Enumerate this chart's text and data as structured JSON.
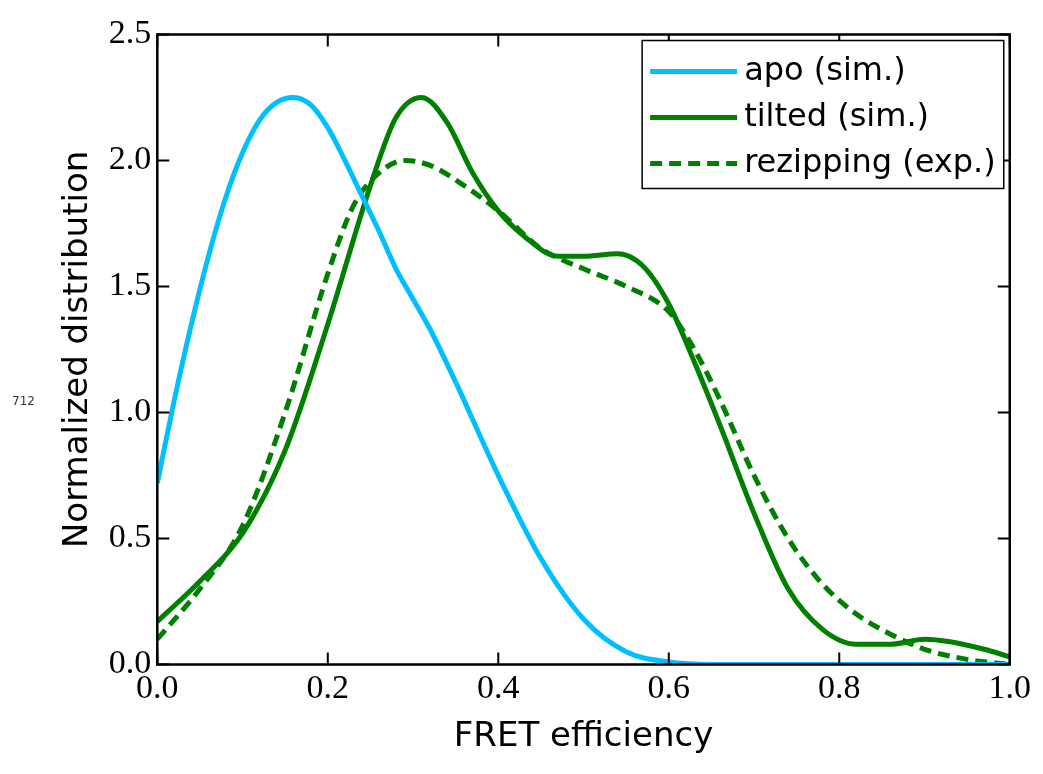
{
  "chart_data": {
    "type": "line",
    "xlabel": "FRET efficiency",
    "ylabel": "Normalized distribution",
    "xlim": [
      0,
      1
    ],
    "ylim": [
      0,
      2.5
    ],
    "xticks": [
      {
        "value": 0,
        "label": "0.0"
      },
      {
        "value": 0.2,
        "label": "0.2"
      },
      {
        "value": 0.4,
        "label": "0.4"
      },
      {
        "value": 0.6,
        "label": "0.6"
      },
      {
        "value": 0.8,
        "label": "0.8"
      },
      {
        "value": 1,
        "label": "1.0"
      }
    ],
    "yticks": [
      {
        "value": 0,
        "label": "0.0"
      },
      {
        "value": 0.5,
        "label": "0.5"
      },
      {
        "value": 1,
        "label": "1.0"
      },
      {
        "value": 1.5,
        "label": "1.5"
      },
      {
        "value": 2,
        "label": "2.0"
      },
      {
        "value": 2.5,
        "label": "2.5"
      }
    ],
    "grid": false,
    "legend": "top right",
    "marker": "none",
    "annotations": [
      "712"
    ],
    "series": [
      {
        "name": "apo (sim.)",
        "color": "#00bfff",
        "line_style": "solid",
        "x": [
          0,
          0.02,
          0.04,
          0.06,
          0.08,
          0.1,
          0.12,
          0.14,
          0.16,
          0.18,
          0.2,
          0.22,
          0.24,
          0.26,
          0.28,
          0.3,
          0.32,
          0.35,
          0.4,
          0.45,
          0.5,
          0.55,
          0.6,
          0.65,
          0.8,
          1
        ],
        "values": [
          0.72,
          1.05,
          1.35,
          1.62,
          1.85,
          2.03,
          2.16,
          2.23,
          2.25,
          2.22,
          2.13,
          2,
          1.86,
          1.72,
          1.57,
          1.45,
          1.33,
          1.12,
          0.75,
          0.42,
          0.18,
          0.05,
          0.01,
          0,
          0,
          0
        ]
      },
      {
        "name": "tilted (sim.)",
        "color": "#008000",
        "line_style": "solid",
        "x": [
          0,
          0.05,
          0.1,
          0.15,
          0.2,
          0.25,
          0.28,
          0.31,
          0.34,
          0.37,
          0.4,
          0.43,
          0.47,
          0.5,
          0.54,
          0.57,
          0.6,
          0.63,
          0.66,
          0.7,
          0.74,
          0.78,
          0.82,
          0.86,
          0.9,
          0.93,
          0.97,
          1
        ],
        "values": [
          0.17,
          0.33,
          0.52,
          0.85,
          1.35,
          1.9,
          2.17,
          2.25,
          2.15,
          1.95,
          1.8,
          1.7,
          1.62,
          1.62,
          1.63,
          1.58,
          1.43,
          1.2,
          0.95,
          0.6,
          0.3,
          0.14,
          0.08,
          0.08,
          0.1,
          0.09,
          0.06,
          0.03
        ]
      },
      {
        "name": "rezipping (exp.)",
        "color": "#008000",
        "line_style": "dashed",
        "x": [
          0,
          0.05,
          0.1,
          0.15,
          0.2,
          0.23,
          0.26,
          0.29,
          0.32,
          0.36,
          0.4,
          0.45,
          0.5,
          0.55,
          0.6,
          0.63,
          0.66,
          0.7,
          0.74,
          0.78,
          0.82,
          0.86,
          0.9,
          0.95,
          1
        ],
        "values": [
          0.1,
          0.3,
          0.55,
          1,
          1.55,
          1.82,
          1.95,
          2,
          1.98,
          1.9,
          1.8,
          1.65,
          1.57,
          1.5,
          1.4,
          1.25,
          1.05,
          0.75,
          0.5,
          0.32,
          0.2,
          0.12,
          0.06,
          0.02,
          0
        ]
      }
    ]
  }
}
